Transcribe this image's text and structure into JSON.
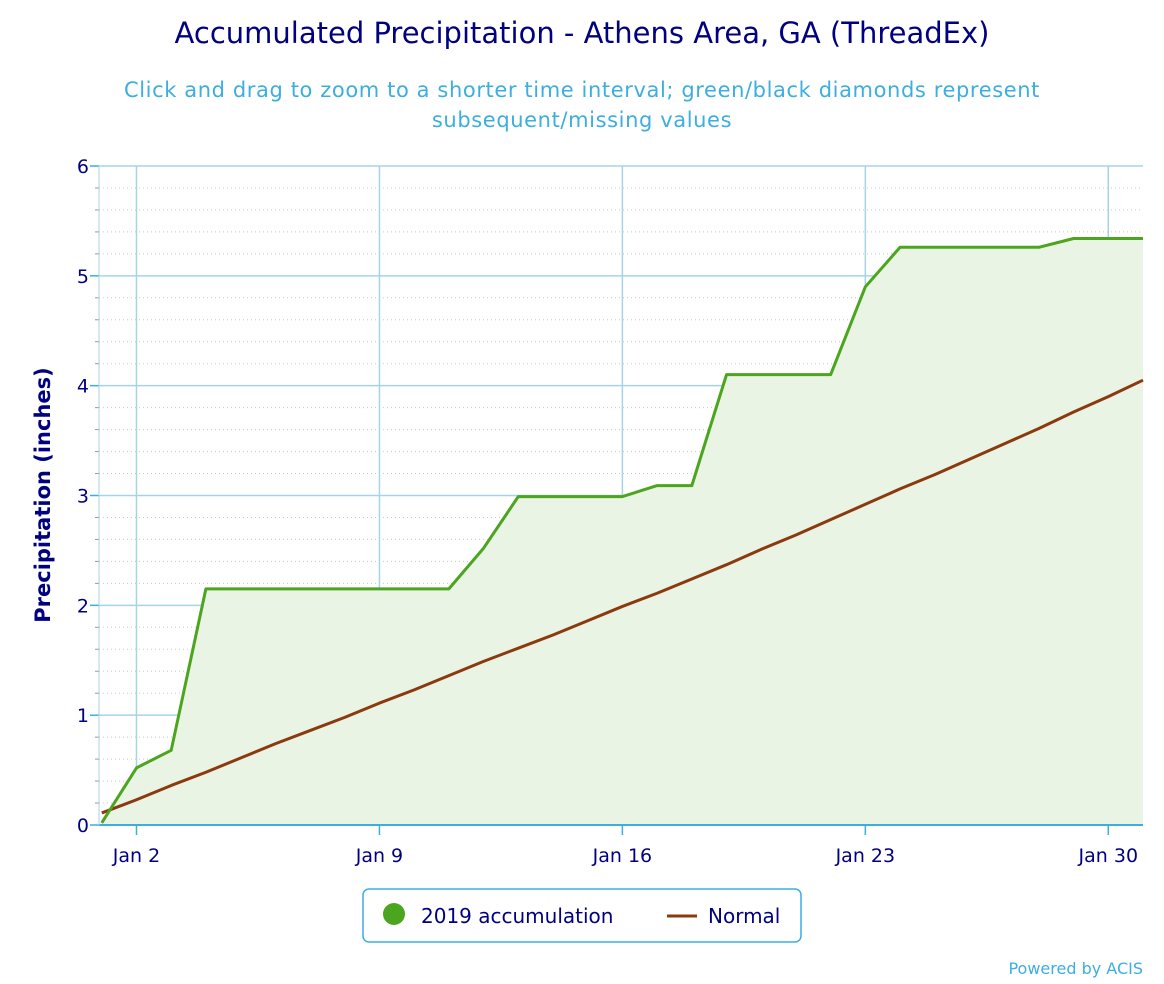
{
  "chart_data": {
    "type": "line",
    "title": "Accumulated Precipitation - Athens Area, GA (ThreadEx)",
    "subtitle_lines": [
      "Click and drag to zoom to a shorter time interval; green/black diamonds represent",
      "subsequent/missing values"
    ],
    "xlabel": "",
    "ylabel": "Precipitation (inches)",
    "ylim": [
      0,
      6
    ],
    "yticks": [
      "0",
      "1",
      "2",
      "3",
      "4",
      "5",
      "6"
    ],
    "xticks": [
      {
        "day": 2,
        "label": "Jan 2"
      },
      {
        "day": 9,
        "label": "Jan 9"
      },
      {
        "day": 16,
        "label": "Jan 16"
      },
      {
        "day": 23,
        "label": "Jan 23"
      },
      {
        "day": 30,
        "label": "Jan 30"
      }
    ],
    "x": [
      1,
      2,
      3,
      4,
      5,
      6,
      7,
      8,
      9,
      10,
      11,
      12,
      13,
      14,
      15,
      16,
      17,
      18,
      19,
      20,
      21,
      22,
      23,
      24,
      25,
      26,
      27,
      28,
      29,
      30,
      31
    ],
    "xrange": [
      1,
      31
    ],
    "grid": true,
    "legend_position": "bottom",
    "series": [
      {
        "name": "2019 accumulation",
        "color": "#4ca51f",
        "fill": "#eaf4e4",
        "legend_symbol": "circle",
        "values": [
          0.02,
          0.52,
          0.68,
          2.15,
          2.15,
          2.15,
          2.15,
          2.15,
          2.15,
          2.15,
          2.15,
          2.52,
          2.99,
          2.99,
          2.99,
          2.99,
          3.09,
          3.09,
          4.1,
          4.1,
          4.1,
          4.1,
          4.9,
          5.26,
          5.26,
          5.26,
          5.26,
          5.26,
          5.34,
          5.34,
          5.34
        ]
      },
      {
        "name": "Normal",
        "color": "#8b3a10",
        "legend_symbol": "line",
        "values": [
          0.11,
          0.23,
          0.36,
          0.48,
          0.61,
          0.74,
          0.86,
          0.98,
          1.11,
          1.23,
          1.36,
          1.49,
          1.61,
          1.73,
          1.86,
          1.99,
          2.11,
          2.24,
          2.37,
          2.51,
          2.64,
          2.78,
          2.92,
          3.06,
          3.19,
          3.33,
          3.47,
          3.61,
          3.76,
          3.9,
          4.05
        ]
      }
    ],
    "credit": "Powered by ACIS"
  }
}
